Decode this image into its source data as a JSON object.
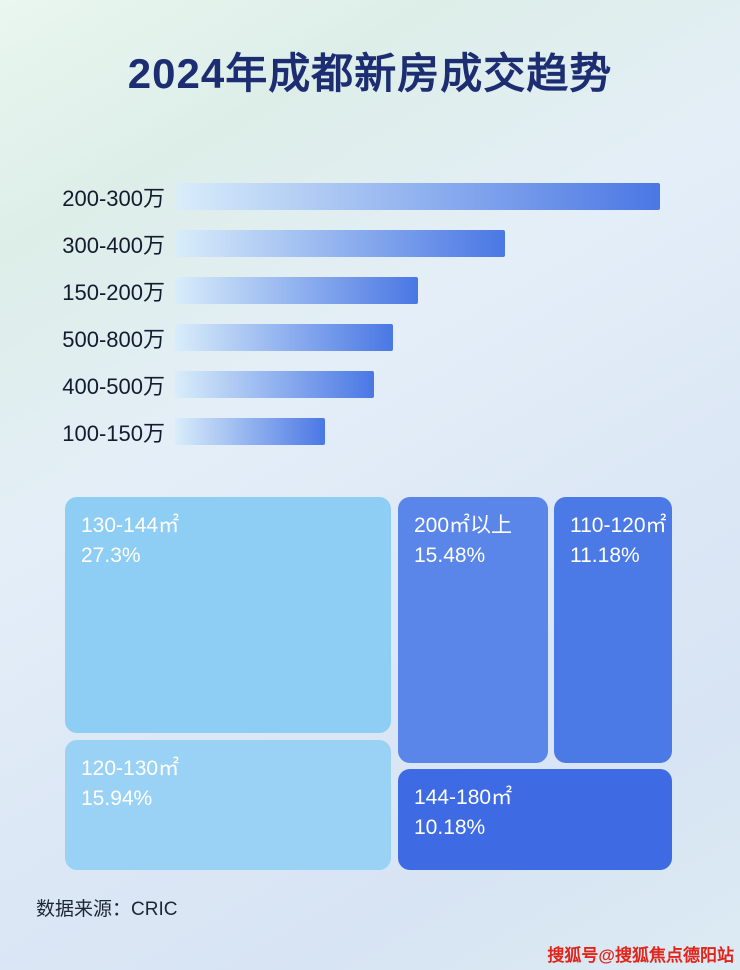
{
  "page": {
    "title": "2024年成都新房成交趋势",
    "footer_source": "数据来源：CRIC",
    "watermark": "搜狐号@搜狐焦点德阳站"
  },
  "colors": {
    "title_text": "#1c2d72",
    "bar_gradient_start": "#d9edfa",
    "bar_gradient_end": "#4a77e4",
    "category_label_text": "#141b2f",
    "tile_text": "#ffffff",
    "source_text": "#1e2633",
    "watermark_red": "#e1251b"
  },
  "chart_data": [
    {
      "type": "bar",
      "orientation": "horizontal",
      "title": "2024年成都新房成交趋势",
      "categories": [
        "200-300万",
        "300-400万",
        "150-200万",
        "500-800万",
        "400-500万",
        "100-150万"
      ],
      "values": [
        100,
        68,
        50,
        45,
        41,
        31
      ],
      "value_note": "bars carry no numeric labels in the image; values are relative bar lengths with the longest bar = 100",
      "xlabel": "",
      "ylabel": "",
      "axis": "none",
      "grid": false,
      "legend": "none"
    },
    {
      "type": "treemap",
      "tiles": [
        {
          "label": "130-144㎡",
          "value": 27.3,
          "value_label": "27.3%",
          "color": "#8ecdf4"
        },
        {
          "label": "120-130㎡",
          "value": 15.94,
          "value_label": "15.94%",
          "color": "#9ad2f5"
        },
        {
          "label": "200㎡以上",
          "value": 15.48,
          "value_label": "15.48%",
          "color": "#5a86e9"
        },
        {
          "label": "110-120㎡",
          "value": 11.18,
          "value_label": "11.18%",
          "color": "#4b79e6"
        },
        {
          "label": "144-180㎡",
          "value": 10.18,
          "value_label": "10.18%",
          "color": "#3e6be3"
        }
      ],
      "grid": false,
      "legend": "none"
    }
  ]
}
